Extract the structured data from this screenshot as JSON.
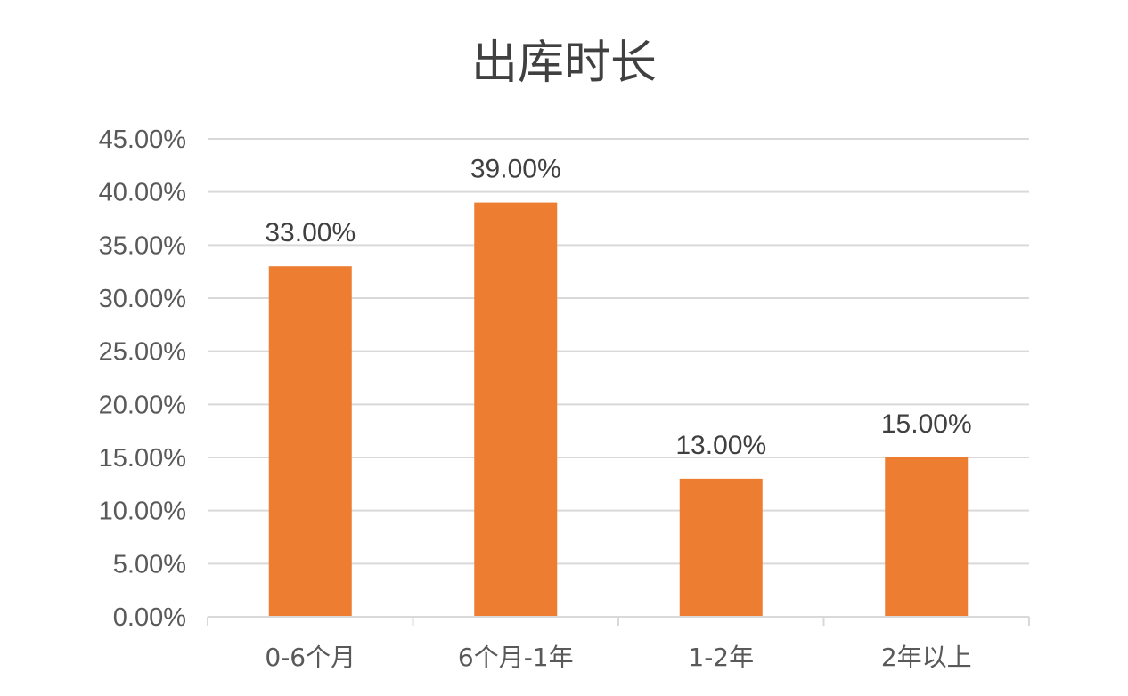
{
  "chart_data": {
    "type": "bar",
    "title": "出库时长",
    "categories": [
      "0-6个月",
      "6个月-1年",
      "1-2年",
      "2年以上"
    ],
    "values": [
      33,
      39,
      13,
      15
    ],
    "data_labels": [
      "33.00%",
      "39.00%",
      "13.00%",
      "15.00%"
    ],
    "ylim": [
      0,
      45
    ],
    "yticks": [
      0,
      5,
      10,
      15,
      20,
      25,
      30,
      35,
      40,
      45
    ],
    "ytick_labels": [
      "0.00%",
      "5.00%",
      "10.00%",
      "15.00%",
      "20.00%",
      "25.00%",
      "30.00%",
      "35.00%",
      "40.00%",
      "45.00%"
    ],
    "grid": true,
    "legend": "none",
    "bar_color": "#ED7D31",
    "grid_color": "#D9D9D9"
  }
}
